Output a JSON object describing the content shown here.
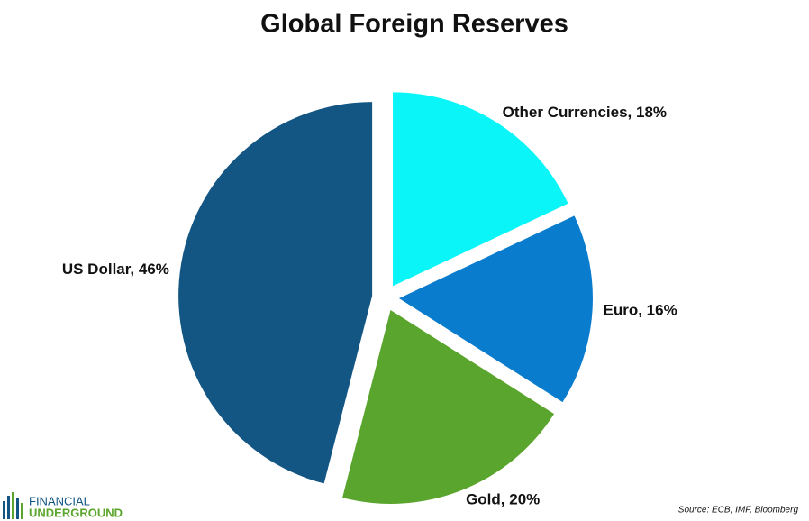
{
  "chart_data": {
    "type": "pie",
    "title": "Global Foreign Reserves",
    "values": [
      18,
      16,
      20,
      46
    ],
    "value_labels": [
      "Other Currencies, 18%",
      "Euro, 16%",
      "Gold, 20%",
      "US Dollar, 46%"
    ],
    "colors": [
      "#0af5f8",
      "#0a7ccd",
      "#5aa52d",
      "#135683"
    ],
    "source": "Source: ECB, IMF, Bloomberg"
  },
  "logo": {
    "top": "FINANCIAL",
    "bottom": "UNDERGROUND"
  }
}
